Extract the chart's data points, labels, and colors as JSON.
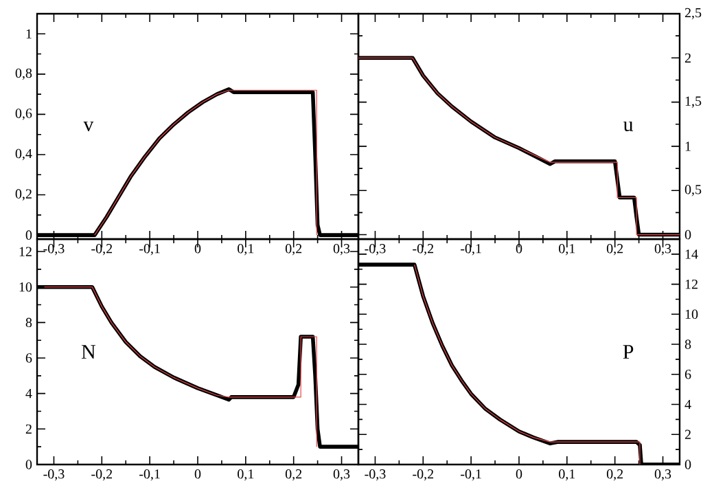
{
  "chart_data": [
    {
      "type": "line",
      "ylabel": "v",
      "xlim": [
        -0.335,
        0.335
      ],
      "ylim": [
        -0.02,
        1.1
      ],
      "xticks": [
        {
          "value": -0.3,
          "label": "-0,3"
        },
        {
          "value": -0.2,
          "label": "-0,2"
        },
        {
          "value": -0.1,
          "label": "-0,1"
        },
        0,
        {
          "value": 0.1,
          "label": "0,1"
        },
        {
          "value": 0.2,
          "label": "0,2"
        },
        {
          "value": 0.3,
          "label": "0,3"
        }
      ],
      "yticks": [
        0,
        {
          "value": 0.2,
          "label": "0,2"
        },
        {
          "value": 0.4,
          "label": "0,4"
        },
        {
          "value": 0.6,
          "label": "0,6"
        },
        {
          "value": 0.8,
          "label": "0,8"
        },
        1
      ],
      "series": [
        {
          "color": "#e8474a",
          "x": [
            -0.215,
            -0.19,
            -0.17,
            -0.14,
            -0.11,
            -0.08,
            -0.05,
            -0.02,
            0.01,
            0.04,
            0.065,
            0.248,
            0.248
          ],
          "values": [
            0,
            0.09,
            0.17,
            0.29,
            0.39,
            0.48,
            0.55,
            0.61,
            0.66,
            0.7,
            0.72,
            0.72,
            0
          ]
        },
        {
          "color": "#000000",
          "x": [
            -0.335,
            -0.215,
            -0.19,
            -0.17,
            -0.14,
            -0.11,
            -0.08,
            -0.05,
            -0.02,
            0.01,
            0.04,
            0.065,
            0.075,
            0.24,
            0.245,
            0.25,
            0.255,
            0.335
          ],
          "values": [
            0,
            0,
            0.09,
            0.17,
            0.29,
            0.39,
            0.48,
            0.55,
            0.61,
            0.66,
            0.7,
            0.725,
            0.71,
            0.71,
            0.4,
            0.05,
            0,
            0
          ]
        }
      ]
    },
    {
      "type": "line",
      "ylabel": "u",
      "xlim": [
        -0.335,
        0.335
      ],
      "y2lim": [
        -0.05,
        2.5
      ],
      "xticks": [
        {
          "value": -0.3,
          "label": "-0,3"
        },
        {
          "value": -0.2,
          "label": "-0,2"
        },
        {
          "value": -0.1,
          "label": "-0,1"
        },
        0,
        {
          "value": 0.1,
          "label": "0,1"
        },
        {
          "value": 0.2,
          "label": "0,2"
        },
        {
          "value": 0.3,
          "label": "0,3"
        }
      ],
      "y2ticks": [
        0,
        {
          "value": 0.5,
          "label": "0,5"
        },
        1,
        {
          "value": 1.5,
          "label": "1,5"
        },
        2,
        {
          "value": 2.5,
          "label": "2,5"
        }
      ],
      "series": [
        {
          "color": "#e8474a",
          "axis": "y2",
          "x": [
            -0.335,
            -0.222,
            -0.2,
            -0.17,
            -0.14,
            -0.1,
            -0.05,
            0,
            0.04,
            0.065,
            0.205,
            0.205,
            0.245,
            0.245,
            0.335
          ],
          "values": [
            2,
            2,
            1.8,
            1.6,
            1.45,
            1.28,
            1.1,
            0.98,
            0.88,
            0.82,
            0.82,
            0.42,
            0.42,
            0,
            0
          ]
        },
        {
          "color": "#000000",
          "axis": "y2",
          "x": [
            -0.335,
            -0.222,
            -0.2,
            -0.17,
            -0.14,
            -0.1,
            -0.05,
            0,
            0.04,
            0.065,
            0.075,
            0.2,
            0.21,
            0.24,
            0.245,
            0.25,
            0.335
          ],
          "values": [
            2,
            2,
            1.8,
            1.6,
            1.45,
            1.28,
            1.1,
            0.98,
            0.87,
            0.8,
            0.83,
            0.83,
            0.42,
            0.42,
            0.2,
            0,
            0
          ]
        }
      ]
    },
    {
      "type": "line",
      "ylabel": "N",
      "xlim": [
        -0.335,
        0.335
      ],
      "ylim": [
        0,
        12.7
      ],
      "xticks": [
        {
          "value": -0.3,
          "label": "-0,3"
        },
        {
          "value": -0.2,
          "label": "-0,2"
        },
        {
          "value": -0.1,
          "label": "-0,1"
        },
        0,
        {
          "value": 0.1,
          "label": "0,1"
        },
        {
          "value": 0.2,
          "label": "0,2"
        },
        {
          "value": 0.3,
          "label": "0,3"
        }
      ],
      "yticks": [
        0,
        2,
        4,
        6,
        8,
        10,
        12
      ],
      "series": [
        {
          "color": "#e8474a",
          "x": [
            -0.32,
            -0.22,
            -0.2,
            -0.18,
            -0.15,
            -0.12,
            -0.09,
            -0.05,
            0,
            0.04,
            0.065,
            0.215,
            0.215,
            0.245,
            0.248,
            0.248
          ],
          "values": [
            10,
            10,
            8.9,
            8,
            6.9,
            6.1,
            5.5,
            4.9,
            4.3,
            3.9,
            3.8,
            3.8,
            7.2,
            7.2,
            7.2,
            1
          ]
        },
        {
          "color": "#000000",
          "x": [
            -0.335,
            -0.22,
            -0.2,
            -0.18,
            -0.15,
            -0.12,
            -0.09,
            -0.05,
            0,
            0.04,
            0.065,
            0.07,
            0.2,
            0.21,
            0.215,
            0.24,
            0.245,
            0.25,
            0.255,
            0.335
          ],
          "values": [
            10,
            10,
            8.9,
            8,
            6.9,
            6.1,
            5.5,
            4.9,
            4.3,
            3.9,
            3.65,
            3.8,
            3.8,
            4.5,
            7.2,
            7.2,
            5,
            2,
            1,
            1
          ]
        }
      ]
    },
    {
      "type": "line",
      "ylabel": "P",
      "xlim": [
        -0.335,
        0.335
      ],
      "y2lim": [
        0,
        15
      ],
      "xticks": [
        {
          "value": -0.3,
          "label": "-0,3"
        },
        {
          "value": -0.2,
          "label": "-0,2"
        },
        {
          "value": -0.1,
          "label": "-0,1"
        },
        0,
        {
          "value": 0.1,
          "label": "0,1"
        },
        {
          "value": 0.2,
          "label": "0,2"
        },
        {
          "value": 0.3,
          "label": "0,3"
        }
      ],
      "y2ticks": [
        0,
        2,
        4,
        6,
        8,
        10,
        12,
        14
      ],
      "series": [
        {
          "color": "#e8474a",
          "axis": "y2",
          "x": [
            -0.218,
            -0.2,
            -0.18,
            -0.16,
            -0.14,
            -0.12,
            -0.1,
            -0.07,
            -0.04,
            0,
            0.03,
            0.065,
            0.252,
            0.252
          ],
          "values": [
            13.3,
            11.2,
            9.4,
            7.9,
            6.6,
            5.6,
            4.7,
            3.7,
            3,
            2.2,
            1.8,
            1.5,
            1.5,
            0
          ]
        },
        {
          "color": "#000000",
          "axis": "y2",
          "x": [
            -0.335,
            -0.218,
            -0.2,
            -0.18,
            -0.16,
            -0.14,
            -0.12,
            -0.1,
            -0.07,
            -0.04,
            0,
            0.03,
            0.065,
            0.08,
            0.245,
            0.252,
            0.255,
            0.335
          ],
          "values": [
            13.3,
            13.3,
            11.2,
            9.4,
            7.9,
            6.6,
            5.6,
            4.7,
            3.7,
            3,
            2.2,
            1.8,
            1.4,
            1.5,
            1.5,
            1.3,
            0,
            0
          ]
        }
      ]
    }
  ]
}
